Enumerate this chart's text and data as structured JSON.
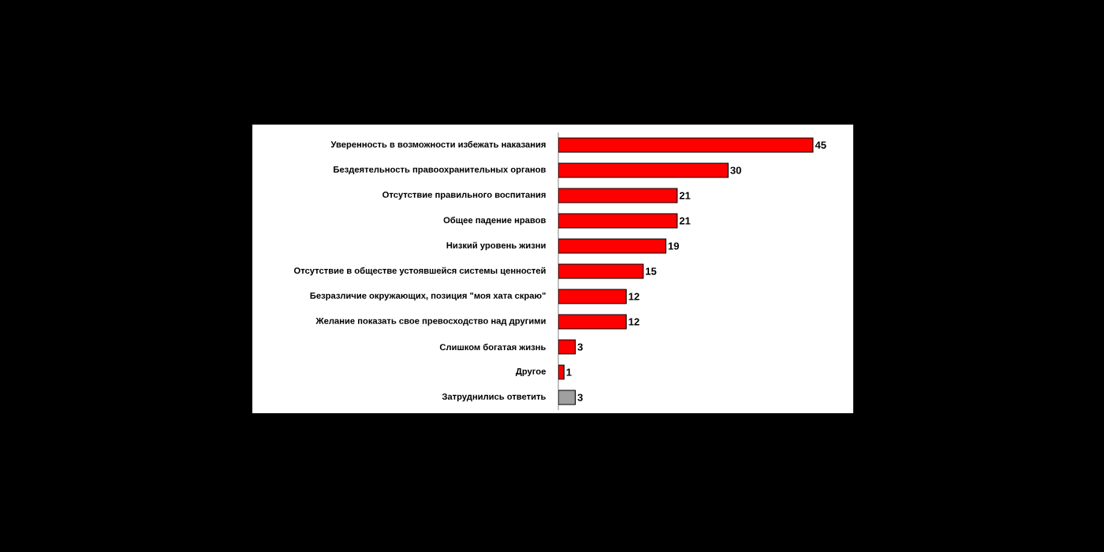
{
  "chart_data": {
    "type": "bar",
    "orientation": "horizontal",
    "data_labels": true,
    "categories": [
      "Уверенность в возможности избежать наказания",
      "Бездеятельность правоохранительных органов",
      "Отсутствие правильного воспитания",
      "Общее падение нравов",
      "Низкий уровень жизни",
      "Отсутствие в обществе устоявшейся системы ценностей",
      "Безразличие окружающих, позиция \"моя хата скраю\"",
      "Желание показать свое превосходство над другими",
      "Слишком богатая жизнь",
      "Другое",
      "Затруднились ответить"
    ],
    "values": [
      45,
      30,
      21,
      21,
      19,
      15,
      12,
      12,
      3,
      1,
      3
    ],
    "colors": [
      "#ff0000",
      "#ff0000",
      "#ff0000",
      "#ff0000",
      "#ff0000",
      "#ff0000",
      "#ff0000",
      "#ff0000",
      "#ff0000",
      "#ff0000",
      "#a0a0a0"
    ]
  }
}
